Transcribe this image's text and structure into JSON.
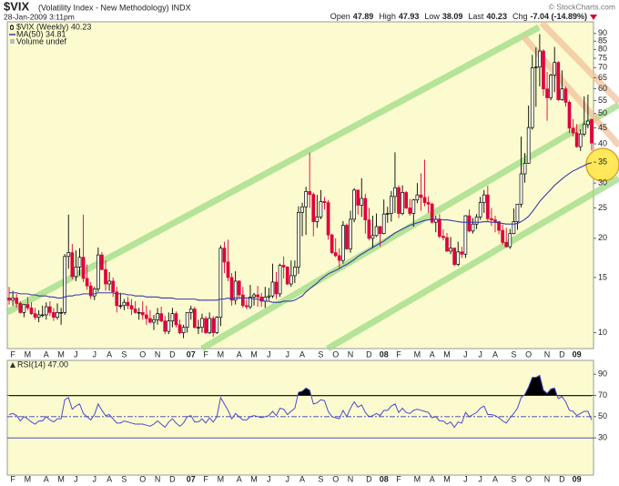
{
  "header": {
    "symbol": "$VIX",
    "name": "(Volatility Index - New Methodology) INDX",
    "date": "28-Jan-2009 3:11pm",
    "watermark": "© StockCharts.com",
    "quote": [
      {
        "label": "Open",
        "value": "47.89"
      },
      {
        "label": "High",
        "value": "47.93"
      },
      {
        "label": "Low",
        "value": "38.09"
      },
      {
        "label": "Last",
        "value": "40.23"
      },
      {
        "label": "Chg",
        "value": "-7.04 (-14.89%)"
      }
    ]
  },
  "chart_data": [
    {
      "type": "candlestick",
      "name": "$VIX (Weekly) 40.23",
      "volume_label": "Volume undef",
      "up_color": "#000000",
      "down_color": "#e0003a",
      "log_scale": true,
      "ylim": [
        8.9,
        98
      ],
      "yticks": [
        10,
        15,
        20,
        25,
        30,
        35,
        40,
        45,
        50,
        55,
        60,
        65,
        70,
        75,
        80,
        85,
        90
      ],
      "categories": [
        null,
        "F",
        null,
        null,
        null,
        "M",
        null,
        null,
        null,
        null,
        "A",
        null,
        null,
        null,
        "M",
        null,
        null,
        null,
        "J",
        null,
        null,
        null,
        null,
        "J",
        null,
        null,
        null,
        "A",
        null,
        null,
        null,
        "S",
        null,
        null,
        null,
        null,
        "O",
        null,
        null,
        null,
        "N",
        null,
        null,
        null,
        "D",
        null,
        null,
        null,
        null,
        "07",
        null,
        null,
        null,
        "F",
        null,
        null,
        null,
        "M",
        null,
        null,
        null,
        null,
        "A",
        null,
        null,
        null,
        "M",
        null,
        null,
        null,
        "J",
        null,
        null,
        null,
        null,
        "J",
        null,
        null,
        null,
        "A",
        null,
        null,
        null,
        null,
        "S",
        null,
        null,
        null,
        "O",
        null,
        null,
        null,
        "N",
        null,
        null,
        null,
        null,
        "D",
        null,
        null,
        null,
        "08",
        null,
        null,
        null,
        "F",
        null,
        null,
        null,
        null,
        "M",
        null,
        null,
        null,
        "A",
        null,
        null,
        null,
        "M",
        null,
        null,
        null,
        null,
        "J",
        null,
        null,
        null,
        "J",
        null,
        null,
        null,
        "A",
        null,
        null,
        null,
        null,
        "S",
        null,
        null,
        null,
        "O",
        null,
        null,
        null,
        null,
        "N",
        null,
        null,
        null,
        "D",
        null,
        null,
        null,
        "09",
        null,
        null,
        null,
        null
      ],
      "open": [
        12.9,
        12.7,
        12.9,
        12.4,
        11.6,
        12.3,
        12.0,
        11.5,
        11.2,
        11.4,
        11.4,
        12.1,
        11.6,
        11.2,
        11.6,
        11.6,
        17.5,
        18.0,
        15.1,
        16.2,
        17.4,
        14.9,
        14.1,
        13.1,
        13.8,
        17.7,
        15.9,
        14.3,
        14.6,
        13.5,
        12.2,
        12.2,
        12.5,
        12.2,
        11.9,
        11.6,
        11.6,
        11.4,
        11.1,
        10.8,
        11.0,
        11.5,
        10.9,
        10.1,
        10.9,
        11.5,
        10.6,
        10.0,
        10.4,
        11.6,
        11.9,
        10.4,
        10.4,
        11.1,
        10.0,
        11.1,
        10.0,
        11.2,
        18.6,
        16.8,
        15.0,
        12.7,
        14.6,
        13.2,
        12.2,
        12.1,
        13.0,
        13.2,
        13.0,
        12.6,
        13.0,
        13.1,
        14.5,
        13.3,
        16.4,
        16.2,
        14.3,
        15.2,
        16.2,
        24.2,
        25.2,
        28.2,
        27.6,
        22.6,
        23.4,
        26.2,
        26.0,
        20.5,
        18.0,
        17.6,
        17.0,
        22.0,
        18.5,
        23.0,
        28.5,
        25.5,
        26.8,
        22.9,
        20.0,
        20.4,
        21.8,
        20.7,
        23.9,
        24.0,
        27.2,
        29.0,
        24.0,
        28.0,
        25.0,
        24.0,
        26.5,
        27.5,
        27.0,
        26.0,
        25.7,
        22.5,
        23.0,
        20.3,
        20.1,
        18.2,
        18.6,
        16.5,
        18.1,
        17.8,
        23.6,
        21.1,
        22.2,
        23.4,
        26.0,
        27.5,
        23.1,
        22.9,
        22.6,
        21.2,
        19.4,
        18.8,
        20.7,
        22.6,
        25.7,
        32.1,
        34.7,
        45.1,
        69.9,
        70.3,
        79.1,
        59.9,
        56.1,
        66.3,
        72.7,
        55.3,
        59.9,
        54.3,
        44.9,
        43.4,
        39.2,
        43.0,
        46.1,
        47.89
      ],
      "high": [
        14.0,
        13.6,
        13.3,
        12.6,
        12.3,
        13.0,
        12.5,
        12.0,
        11.8,
        12.2,
        12.5,
        12.6,
        12.0,
        12.4,
        12.0,
        17.8,
        23.8,
        19.2,
        18.3,
        18.6,
        23.8,
        16.5,
        14.5,
        14.0,
        18.7,
        18.1,
        17.0,
        15.6,
        15.0,
        14.0,
        13.4,
        12.8,
        13.0,
        12.8,
        12.6,
        12.0,
        12.6,
        12.2,
        11.8,
        11.4,
        12.0,
        12.1,
        11.3,
        11.6,
        12.0,
        11.7,
        11.0,
        10.6,
        11.6,
        12.2,
        12.1,
        11.0,
        11.5,
        11.3,
        11.6,
        11.3,
        11.3,
        19.0,
        19.5,
        19.8,
        15.5,
        15.7,
        14.7,
        14.0,
        12.8,
        14.2,
        13.4,
        14.1,
        13.4,
        14.0,
        13.9,
        16.6,
        15.6,
        16.6,
        17.5,
        16.3,
        17.0,
        17.0,
        25.3,
        26.0,
        29.2,
        37.5,
        28.0,
        27.5,
        28.5,
        27.1,
        26.5,
        20.7,
        20.0,
        18.6,
        22.7,
        22.3,
        24.5,
        28.9,
        28.5,
        31.1,
        27.7,
        25.0,
        23.6,
        24.0,
        21.9,
        26.6,
        25.2,
        28.3,
        37.6,
        29.5,
        29.5,
        28.3,
        26.7,
        26.7,
        30.0,
        32.2,
        35.6,
        27.2,
        26.0,
        23.6,
        23.9,
        21.4,
        20.8,
        20.2,
        18.7,
        19.5,
        18.8,
        23.7,
        24.7,
        23.2,
        23.9,
        27.1,
        28.5,
        29.4,
        25.0,
        23.6,
        22.7,
        22.1,
        21.6,
        21.4,
        24.9,
        25.7,
        42.2,
        37.4,
        53.0,
        76.9,
        81.2,
        89.5,
        80.1,
        67.9,
        67.0,
        81.5,
        73.4,
        68.6,
        60.8,
        55.0,
        48.0,
        46.3,
        44.5,
        56.7,
        57.4,
        47.93
      ],
      "low": [
        12.3,
        12.2,
        12.0,
        11.5,
        11.2,
        11.8,
        11.4,
        11.0,
        10.8,
        11.2,
        11.0,
        11.3,
        10.9,
        11.0,
        10.6,
        11.4,
        16.0,
        14.8,
        14.6,
        15.2,
        14.5,
        13.7,
        12.8,
        12.7,
        13.5,
        15.8,
        13.6,
        13.6,
        13.0,
        11.6,
        11.9,
        11.8,
        11.9,
        11.4,
        11.5,
        11.0,
        11.0,
        10.6,
        10.7,
        10.2,
        10.6,
        10.8,
        9.9,
        9.9,
        10.4,
        10.4,
        9.9,
        9.6,
        10.0,
        11.0,
        10.3,
        9.9,
        10.0,
        9.9,
        9.9,
        9.7,
        9.9,
        10.5,
        15.5,
        14.6,
        12.2,
        12.3,
        12.8,
        12.0,
        11.9,
        11.9,
        12.2,
        12.1,
        12.1,
        12.0,
        12.7,
        12.9,
        12.8,
        13.0,
        14.9,
        14.2,
        14.0,
        14.4,
        15.4,
        20.3,
        20.5,
        25.0,
        20.3,
        21.6,
        23.0,
        24.7,
        19.8,
        17.8,
        17.4,
        16.1,
        16.6,
        18.4,
        18.0,
        22.5,
        23.8,
        23.4,
        20.7,
        19.7,
        18.6,
        20.2,
        18.8,
        20.6,
        22.4,
        22.6,
        24.1,
        23.2,
        23.7,
        24.8,
        23.6,
        21.8,
        25.9,
        24.5,
        25.3,
        24.1,
        22.3,
        20.9,
        20.0,
        19.7,
        18.1,
        17.8,
        16.3,
        16.3,
        17.3,
        17.3,
        20.9,
        20.7,
        21.4,
        22.9,
        24.1,
        22.7,
        21.9,
        20.9,
        20.6,
        19.1,
        18.7,
        18.5,
        20.6,
        21.3,
        25.1,
        30.1,
        34.6,
        44.4,
        52.5,
        61.0,
        56.9,
        47.4,
        55.1,
        58.5,
        54.9,
        54.9,
        52.6,
        43.3,
        42.2,
        38.9,
        38.0,
        42.3,
        44.9,
        38.09
      ],
      "close": [
        12.7,
        12.9,
        12.4,
        11.6,
        12.3,
        12.0,
        11.5,
        11.2,
        11.4,
        11.4,
        12.1,
        11.6,
        11.2,
        11.6,
        11.6,
        17.5,
        18.0,
        15.1,
        16.2,
        17.4,
        14.9,
        14.1,
        13.1,
        13.8,
        17.7,
        15.9,
        14.3,
        14.6,
        13.5,
        12.2,
        12.2,
        12.5,
        12.2,
        11.9,
        11.6,
        11.6,
        11.4,
        11.1,
        10.8,
        11.0,
        11.5,
        10.9,
        10.1,
        10.9,
        11.5,
        10.6,
        10.0,
        10.4,
        11.6,
        11.9,
        10.4,
        10.4,
        11.1,
        10.0,
        11.1,
        10.0,
        11.2,
        18.6,
        16.8,
        15.0,
        12.7,
        14.6,
        13.2,
        12.2,
        12.1,
        13.0,
        13.2,
        13.0,
        12.6,
        13.0,
        13.1,
        14.5,
        13.3,
        16.4,
        16.2,
        14.3,
        15.2,
        16.2,
        24.2,
        25.2,
        28.2,
        27.6,
        22.6,
        23.4,
        26.2,
        26.0,
        20.5,
        18.0,
        17.6,
        17.0,
        22.0,
        18.5,
        23.0,
        28.5,
        25.5,
        26.8,
        22.9,
        20.0,
        20.4,
        21.8,
        20.7,
        23.9,
        24.0,
        27.2,
        29.0,
        24.0,
        28.0,
        25.0,
        24.0,
        26.5,
        27.5,
        27.0,
        26.0,
        25.7,
        22.5,
        23.0,
        20.3,
        20.1,
        18.2,
        18.6,
        16.5,
        18.1,
        17.8,
        23.6,
        21.1,
        22.2,
        23.4,
        26.0,
        27.5,
        23.1,
        22.9,
        22.6,
        21.2,
        19.4,
        18.8,
        20.7,
        22.6,
        25.7,
        32.1,
        34.7,
        45.1,
        69.9,
        70.3,
        79.1,
        59.9,
        56.1,
        66.3,
        72.7,
        55.3,
        59.9,
        54.3,
        44.9,
        43.4,
        39.2,
        43.0,
        46.1,
        47.3,
        40.23
      ],
      "series": [
        {
          "name": "MA(50) 34.81",
          "color": "#3a3aa8",
          "values": [
            13.4,
            13.4,
            13.4,
            13.3,
            13.3,
            13.3,
            13.2,
            13.2,
            13.1,
            13.1,
            13.1,
            13.0,
            13.0,
            12.9,
            12.9,
            13.0,
            13.1,
            13.1,
            13.2,
            13.2,
            13.3,
            13.3,
            13.3,
            13.3,
            13.4,
            13.4,
            13.4,
            13.4,
            13.4,
            13.3,
            13.3,
            13.3,
            13.2,
            13.2,
            13.1,
            13.1,
            13.1,
            13.0,
            13.0,
            13.0,
            13.0,
            12.9,
            12.9,
            12.9,
            12.9,
            12.8,
            12.8,
            12.8,
            12.8,
            12.8,
            12.8,
            12.7,
            12.7,
            12.7,
            12.7,
            12.7,
            12.7,
            12.8,
            12.8,
            12.9,
            12.8,
            12.9,
            12.9,
            12.9,
            12.9,
            12.9,
            12.8,
            12.8,
            12.7,
            12.6,
            12.6,
            12.5,
            12.5,
            12.5,
            12.6,
            12.6,
            12.6,
            12.7,
            12.9,
            13.1,
            13.5,
            13.8,
            14.1,
            14.4,
            14.8,
            15.1,
            15.4,
            15.6,
            15.8,
            16.0,
            16.3,
            16.5,
            16.8,
            17.1,
            17.5,
            17.8,
            18.1,
            18.4,
            18.7,
            19.0,
            19.3,
            19.6,
            20.0,
            20.4,
            20.8,
            21.1,
            21.4,
            21.7,
            22.0,
            22.2,
            22.4,
            22.6,
            22.8,
            22.9,
            23.0,
            23.0,
            23.0,
            22.9,
            22.9,
            22.8,
            22.7,
            22.6,
            22.5,
            22.5,
            22.5,
            22.5,
            22.5,
            22.5,
            22.6,
            22.6,
            22.5,
            22.5,
            22.4,
            22.3,
            22.2,
            22.2,
            22.2,
            22.3,
            22.6,
            23.0,
            23.5,
            24.3,
            25.2,
            26.2,
            27.0,
            27.8,
            28.6,
            29.5,
            30.2,
            30.9,
            31.6,
            32.2,
            32.8,
            33.2,
            33.7,
            34.1,
            34.6,
            34.81
          ]
        }
      ]
    },
    {
      "type": "line",
      "ylim": [
        -5,
        103
      ],
      "yticks": [
        30,
        50,
        70,
        90
      ],
      "overbought": 70,
      "oversold": 30,
      "centerline": 50,
      "series": [
        {
          "name": "RSI(14) 47.00",
          "color": "#4a4ad0",
          "values": [
            52,
            53,
            51,
            46,
            50,
            48,
            45,
            43,
            46,
            46,
            50,
            47,
            45,
            48,
            48,
            66,
            68,
            57,
            60,
            62,
            53,
            50,
            47,
            52,
            62,
            56,
            51,
            52,
            48,
            44,
            44,
            46,
            45,
            44,
            43,
            43,
            43,
            42,
            41,
            43,
            46,
            43,
            40,
            45,
            48,
            44,
            41,
            44,
            50,
            51,
            45,
            45,
            48,
            44,
            49,
            45,
            50,
            68,
            62,
            56,
            48,
            53,
            50,
            47,
            47,
            50,
            51,
            50,
            49,
            50,
            51,
            55,
            51,
            58,
            57,
            52,
            55,
            58,
            73,
            74,
            77,
            75,
            62,
            63,
            66,
            65,
            55,
            50,
            49,
            48,
            56,
            50,
            58,
            64,
            59,
            61,
            54,
            50,
            51,
            53,
            51,
            56,
            56,
            60,
            62,
            54,
            58,
            54,
            53,
            56,
            57,
            56,
            55,
            54,
            49,
            50,
            46,
            46,
            43,
            45,
            40,
            45,
            44,
            54,
            50,
            52,
            54,
            58,
            60,
            52,
            52,
            51,
            49,
            46,
            44,
            49,
            53,
            58,
            68,
            71,
            78,
            87,
            87,
            89,
            75,
            72,
            76,
            77,
            67,
            69,
            64,
            56,
            55,
            51,
            53,
            55,
            55,
            47.0
          ]
        }
      ]
    }
  ]
}
